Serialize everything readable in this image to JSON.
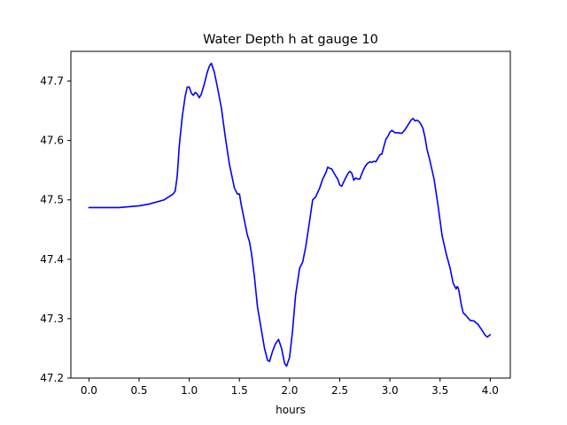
{
  "chart_data": {
    "type": "line",
    "title": "Water Depth h at gauge 10",
    "xlabel": "hours",
    "ylabel": "",
    "xlim": [
      -0.18,
      4.2
    ],
    "ylim": [
      47.2,
      47.75
    ],
    "xticks": [
      0.0,
      0.5,
      1.0,
      1.5,
      2.0,
      2.5,
      3.0,
      3.5,
      4.0
    ],
    "xtick_labels": [
      "0.0",
      "0.5",
      "1.0",
      "1.5",
      "2.0",
      "2.5",
      "3.0",
      "3.5",
      "4.0"
    ],
    "yticks": [
      47.2,
      47.3,
      47.4,
      47.5,
      47.6,
      47.7
    ],
    "ytick_labels": [
      "47.2",
      "47.3",
      "47.4",
      "47.5",
      "47.6",
      "47.7"
    ],
    "grid": false,
    "colors": {
      "line": "#0000ff",
      "axes": "#000000",
      "background": "#ffffff"
    },
    "series": [
      {
        "x": [
          0.0,
          0.3,
          0.5,
          0.6,
          0.75,
          0.84,
          0.86,
          0.88,
          0.9,
          0.93,
          0.96,
          0.98,
          1.0,
          1.02,
          1.04,
          1.06,
          1.08,
          1.1,
          1.12,
          1.15,
          1.18,
          1.2,
          1.22,
          1.25,
          1.28,
          1.32,
          1.36,
          1.4,
          1.45,
          1.48,
          1.5,
          1.52,
          1.55,
          1.58,
          1.6,
          1.62,
          1.65,
          1.68,
          1.72,
          1.75,
          1.78,
          1.8,
          1.83,
          1.86,
          1.89,
          1.92,
          1.95,
          1.97,
          2.0,
          2.03,
          2.06,
          2.1,
          2.13,
          2.16,
          2.2,
          2.23,
          2.26,
          2.3,
          2.33,
          2.36,
          2.38,
          2.4,
          2.42,
          2.44,
          2.46,
          2.48,
          2.5,
          2.52,
          2.55,
          2.58,
          2.6,
          2.62,
          2.64,
          2.66,
          2.68,
          2.7,
          2.72,
          2.74,
          2.76,
          2.78,
          2.8,
          2.82,
          2.84,
          2.86,
          2.88,
          2.9,
          2.92,
          2.94,
          2.96,
          2.98,
          3.0,
          3.02,
          3.05,
          3.08,
          3.12,
          3.15,
          3.18,
          3.21,
          3.23,
          3.25,
          3.27,
          3.29,
          3.31,
          3.33,
          3.35,
          3.37,
          3.4,
          3.44,
          3.48,
          3.52,
          3.56,
          3.6,
          3.63,
          3.66,
          3.67,
          3.68,
          3.69,
          3.71,
          3.73,
          3.76,
          3.8,
          3.84,
          3.88,
          3.92,
          3.95,
          3.97,
          4.0
        ],
        "y": [
          47.487,
          47.487,
          47.49,
          47.493,
          47.5,
          47.51,
          47.515,
          47.54,
          47.59,
          47.64,
          47.675,
          47.69,
          47.69,
          47.68,
          47.676,
          47.681,
          47.678,
          47.672,
          47.678,
          47.695,
          47.715,
          47.725,
          47.73,
          47.715,
          47.69,
          47.655,
          47.605,
          47.56,
          47.52,
          47.51,
          47.51,
          47.49,
          47.465,
          47.44,
          47.43,
          47.41,
          47.37,
          47.32,
          47.28,
          47.25,
          47.23,
          47.228,
          47.245,
          47.258,
          47.265,
          47.25,
          47.225,
          47.22,
          47.235,
          47.28,
          47.34,
          47.385,
          47.395,
          47.42,
          47.465,
          47.5,
          47.505,
          47.52,
          47.535,
          47.545,
          47.555,
          47.553,
          47.552,
          47.546,
          47.54,
          47.535,
          47.525,
          47.523,
          47.534,
          47.544,
          47.548,
          47.545,
          47.533,
          47.537,
          47.535,
          47.535,
          47.544,
          47.552,
          47.558,
          47.562,
          47.564,
          47.563,
          47.565,
          47.564,
          47.57,
          47.576,
          47.577,
          47.59,
          47.602,
          47.607,
          47.614,
          47.617,
          47.613,
          47.613,
          47.612,
          47.618,
          47.626,
          47.634,
          47.637,
          47.633,
          47.634,
          47.632,
          47.627,
          47.62,
          47.605,
          47.585,
          47.565,
          47.535,
          47.49,
          47.44,
          47.41,
          47.385,
          47.36,
          47.35,
          47.354,
          47.352,
          47.345,
          47.325,
          47.31,
          47.305,
          47.297,
          47.296,
          47.29,
          47.28,
          47.272,
          47.269,
          47.273
        ]
      }
    ]
  }
}
